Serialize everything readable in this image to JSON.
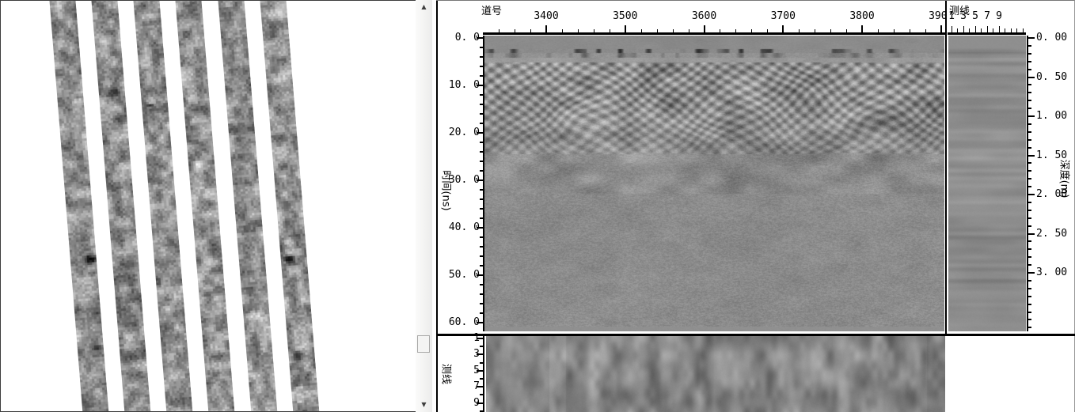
{
  "app": {
    "kind": "GPR section viewer workspace"
  },
  "colors": {
    "frame": "#000000",
    "panel_bg": "#ffffff",
    "image_base_gray": "#8b8b8b",
    "scrollbar_track": "#efefee"
  },
  "icons": {
    "scroll_up": "▲",
    "scroll_down": "▼"
  },
  "left_view": {
    "survey_strip_count": 6
  },
  "right_panel": {
    "trace_axis": {
      "title": "道号",
      "ticks": [
        "3400",
        "3500",
        "3600",
        "3700",
        "3800",
        "3900"
      ]
    },
    "line_axis_top": {
      "title": "测线",
      "ticks": [
        "1",
        "3",
        "5",
        "7",
        "9"
      ]
    },
    "time_axis": {
      "title": "时间(ns)",
      "ticks": [
        "0. 0",
        "10. 0",
        "20. 0",
        "30. 0",
        "40. 0",
        "50. 0",
        "60. 0"
      ]
    },
    "depth_axis": {
      "title": "深度(m)",
      "ticks": [
        "0. 00",
        "0. 50",
        "1. 00",
        "1. 50",
        "2. 00",
        "2. 50",
        "3. 00"
      ]
    },
    "line_axis_bottom": {
      "title": "测线",
      "ticks": [
        "1",
        "3",
        "5",
        "7",
        "9"
      ]
    }
  }
}
